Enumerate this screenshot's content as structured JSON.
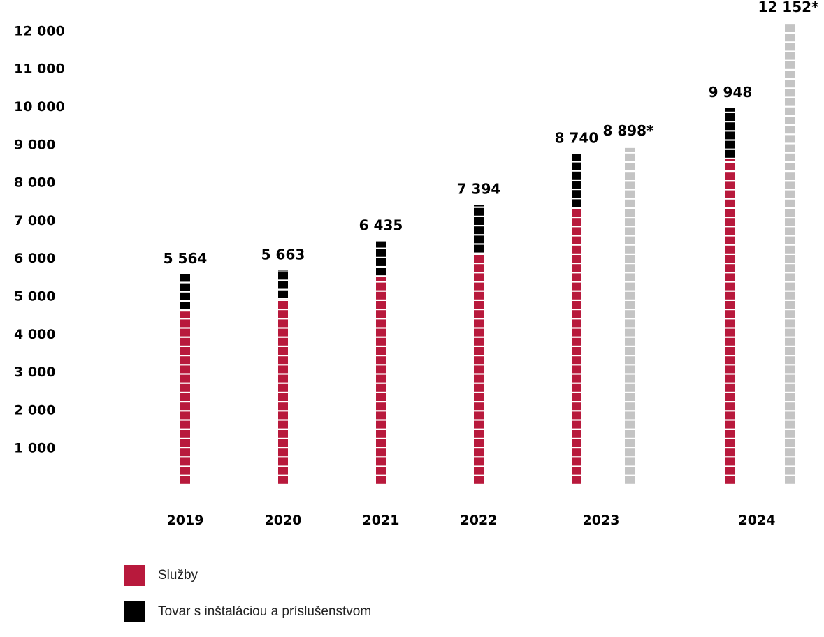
{
  "chart_data": {
    "type": "bar",
    "stacked": true,
    "categories": [
      "2019",
      "2020",
      "2021",
      "2022",
      "2023",
      "2024"
    ],
    "y_ticks": [
      "1 000",
      "2 000",
      "3 000",
      "4 000",
      "5 000",
      "6 000",
      "7 000",
      "8 000",
      "9 000",
      "10 000",
      "11 000",
      "12 000"
    ],
    "ylim": [
      0,
      12000
    ],
    "grid": false,
    "legend_position": "bottom-left",
    "series": [
      {
        "name": "Služby",
        "color": "#b8193c",
        "values": [
          4600,
          4900,
          5500,
          6100,
          7300,
          8600
        ]
      },
      {
        "name": "Tovar s inštaláciou a príslušenstvom",
        "color": "#000000",
        "values": [
          964,
          763,
          935,
          1294,
          1440,
          1348
        ]
      }
    ],
    "totals": [
      {
        "category": "2019",
        "value": 5564,
        "label": "5 564"
      },
      {
        "category": "2020",
        "value": 5663,
        "label": "5 663"
      },
      {
        "category": "2021",
        "value": 6435,
        "label": "6 435"
      },
      {
        "category": "2022",
        "value": 7394,
        "label": "7 394"
      },
      {
        "category": "2023",
        "value": 8740,
        "label": "8 740"
      },
      {
        "category": "2024",
        "value": 9948,
        "label": "9 948"
      }
    ],
    "extra_bars": [
      {
        "category": "2023",
        "value": 8898,
        "label": "8 898*",
        "color": "#c4c4c4"
      },
      {
        "category": "2024",
        "value": 12152,
        "label": "12 152*",
        "color": "#c4c4c4"
      }
    ]
  }
}
